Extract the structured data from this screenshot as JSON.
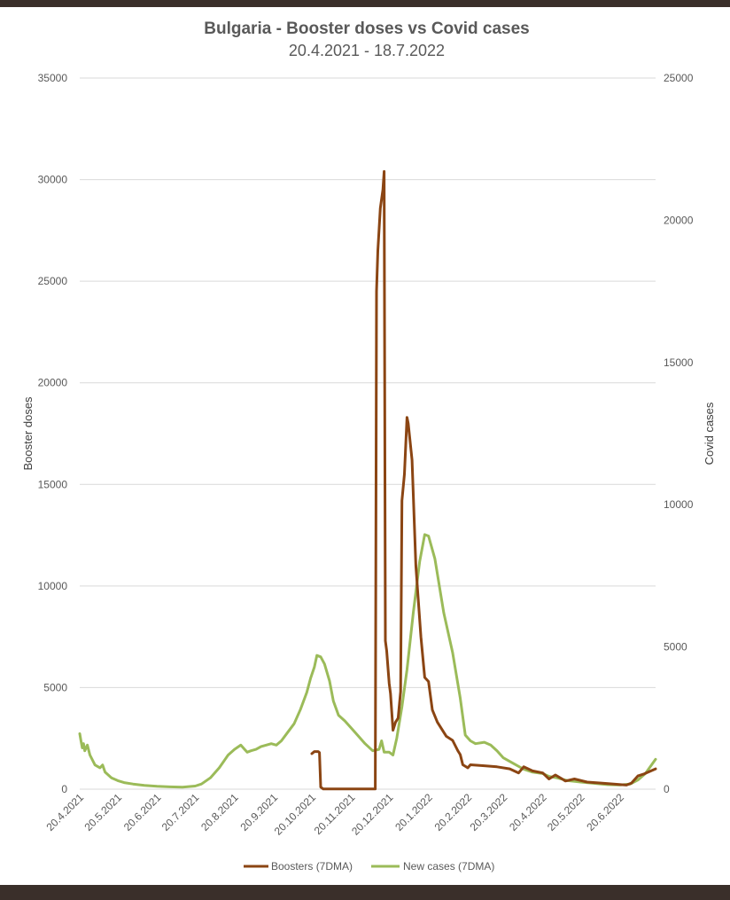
{
  "chart_data": {
    "type": "line",
    "title": "Bulgaria - Booster doses vs Covid cases",
    "subtitle": "20.4.2021 - 18.7.2022",
    "ylabel_left": "Booster doses",
    "ylabel_right": "Covid cases",
    "ylim_left": [
      0,
      35000
    ],
    "ylim_right": [
      0,
      25000
    ],
    "yticks_left": [
      "0",
      "5000",
      "10000",
      "15000",
      "20000",
      "25000",
      "30000",
      "35000"
    ],
    "yticks_right": [
      "0",
      "5000",
      "10000",
      "15000",
      "20000",
      "25000"
    ],
    "x_start": "20.4.2021",
    "x_end": "18.7.2022",
    "xticks": [
      "20.4.2021",
      "20.5.2021",
      "20.6.2021",
      "20.7.2021",
      "20.8.2021",
      "20.9.2021",
      "20.10.2021",
      "20.11.2021",
      "20.12.2021",
      "20.1.2022",
      "20.2.2022",
      "20.3.2022",
      "20.4.2022",
      "20.5.2022",
      "20.6.2022"
    ],
    "grid": "horizontal",
    "legend_position": "bottom",
    "series": [
      {
        "name": "Boosters (7DMA)",
        "axis": "left",
        "color": "#8b4513",
        "points": [
          [
            "20.10.2021",
            1750
          ],
          [
            "22.10.2021",
            1850
          ],
          [
            "25.10.2021",
            1850
          ],
          [
            "26.10.2021",
            1800
          ],
          [
            "27.10.2021",
            100
          ],
          [
            "29.10.2021",
            10
          ],
          [
            "10.11.2021",
            10
          ],
          [
            "20.11.2021",
            10
          ],
          [
            "30.11.2021",
            10
          ],
          [
            "9.12.2021",
            10
          ],
          [
            "10.12.2021",
            24500
          ],
          [
            "11.12.2021",
            26500
          ],
          [
            "13.12.2021",
            28600
          ],
          [
            "15.12.2021",
            29500
          ],
          [
            "16.12.2021",
            30400
          ],
          [
            "17.12.2021",
            7300
          ],
          [
            "18.12.2021",
            6800
          ],
          [
            "20.12.2021",
            5200
          ],
          [
            "21.12.2021",
            4700
          ],
          [
            "23.12.2021",
            2900
          ],
          [
            "25.12.2021",
            3300
          ],
          [
            "27.12.2021",
            3500
          ],
          [
            "29.12.2021",
            4800
          ],
          [
            "30.12.2021",
            14200
          ],
          [
            "1.1.2022",
            15500
          ],
          [
            "3.1.2022",
            18300
          ],
          [
            "4.1.2022",
            18000
          ],
          [
            "7.1.2022",
            16200
          ],
          [
            "10.1.2022",
            11000
          ],
          [
            "14.1.2022",
            7500
          ],
          [
            "17.1.2022",
            5500
          ],
          [
            "20.1.2022",
            5300
          ],
          [
            "23.1.2022",
            3900
          ],
          [
            "27.1.2022",
            3300
          ],
          [
            "3.2.2022",
            2600
          ],
          [
            "8.2.2022",
            2400
          ],
          [
            "12.2.2022",
            1900
          ],
          [
            "14.2.2022",
            1700
          ],
          [
            "16.2.2022",
            1200
          ],
          [
            "20.2.2022",
            1050
          ],
          [
            "22.2.2022",
            1200
          ],
          [
            "5.3.2022",
            1150
          ],
          [
            "15.3.2022",
            1100
          ],
          [
            "25.3.2022",
            1000
          ],
          [
            "1.4.2022",
            800
          ],
          [
            "5.4.2022",
            1100
          ],
          [
            "12.4.2022",
            900
          ],
          [
            "20.4.2022",
            800
          ],
          [
            "25.4.2022",
            500
          ],
          [
            "30.4.2022",
            700
          ],
          [
            "8.5.2022",
            400
          ],
          [
            "15.5.2022",
            500
          ],
          [
            "25.5.2022",
            350
          ],
          [
            "5.6.2022",
            300
          ],
          [
            "15.6.2022",
            250
          ],
          [
            "25.6.2022",
            200
          ],
          [
            "29.6.2022",
            300
          ],
          [
            "4.7.2022",
            650
          ],
          [
            "9.7.2022",
            750
          ],
          [
            "18.7.2022",
            1000
          ]
        ]
      },
      {
        "name": "New cases (7DMA)",
        "axis": "right",
        "color": "#9bbb59",
        "points": [
          [
            "20.4.2021",
            1950
          ],
          [
            "21.4.2021",
            1700
          ],
          [
            "22.4.2021",
            1450
          ],
          [
            "23.4.2021",
            1600
          ],
          [
            "24.4.2021",
            1350
          ],
          [
            "26.4.2021",
            1550
          ],
          [
            "28.4.2021",
            1200
          ],
          [
            "2.5.2021",
            850
          ],
          [
            "4.5.2021",
            800
          ],
          [
            "6.5.2021",
            750
          ],
          [
            "8.5.2021",
            850
          ],
          [
            "10.5.2021",
            600
          ],
          [
            "15.5.2021",
            400
          ],
          [
            "20.5.2021",
            300
          ],
          [
            "25.5.2021",
            230
          ],
          [
            "1.6.2021",
            180
          ],
          [
            "10.6.2021",
            130
          ],
          [
            "20.6.2021",
            100
          ],
          [
            "30.6.2021",
            80
          ],
          [
            "10.7.2021",
            70
          ],
          [
            "15.7.2021",
            90
          ],
          [
            "20.7.2021",
            110
          ],
          [
            "25.7.2021",
            180
          ],
          [
            "1.8.2021",
            400
          ],
          [
            "8.8.2021",
            750
          ],
          [
            "15.8.2021",
            1200
          ],
          [
            "20.8.2021",
            1400
          ],
          [
            "25.8.2021",
            1550
          ],
          [
            "28.8.2021",
            1400
          ],
          [
            "30.8.2021",
            1300
          ],
          [
            "2.9.2021",
            1350
          ],
          [
            "6.9.2021",
            1400
          ],
          [
            "10.9.2021",
            1500
          ],
          [
            "14.9.2021",
            1550
          ],
          [
            "18.9.2021",
            1600
          ],
          [
            "22.9.2021",
            1550
          ],
          [
            "26.9.2021",
            1700
          ],
          [
            "1.10.2021",
            2000
          ],
          [
            "6.10.2021",
            2300
          ],
          [
            "11.10.2021",
            2800
          ],
          [
            "16.10.2021",
            3400
          ],
          [
            "19.10.2021",
            3900
          ],
          [
            "22.10.2021",
            4300
          ],
          [
            "24.10.2021",
            4700
          ],
          [
            "27.10.2021",
            4650
          ],
          [
            "30.10.2021",
            4400
          ],
          [
            "3.11.2021",
            3800
          ],
          [
            "6.11.2021",
            3100
          ],
          [
            "10.11.2021",
            2600
          ],
          [
            "15.11.2021",
            2400
          ],
          [
            "20.11.2021",
            2150
          ],
          [
            "25.11.2021",
            1900
          ],
          [
            "1.12.2021",
            1600
          ],
          [
            "7.12.2021",
            1350
          ],
          [
            "12.12.2021",
            1400
          ],
          [
            "14.12.2021",
            1700
          ],
          [
            "16.12.2021",
            1300
          ],
          [
            "20.12.2021",
            1300
          ],
          [
            "23.12.2021",
            1200
          ],
          [
            "26.12.2021",
            1800
          ],
          [
            "30.12.2021",
            2900
          ],
          [
            "3.1.2022",
            4200
          ],
          [
            "8.1.2022",
            6200
          ],
          [
            "13.1.2022",
            8000
          ],
          [
            "17.1.2022",
            8950
          ],
          [
            "20.1.2022",
            8900
          ],
          [
            "25.1.2022",
            8100
          ],
          [
            "1.2.2022",
            6200
          ],
          [
            "8.2.2022",
            4800
          ],
          [
            "14.2.2022",
            3200
          ],
          [
            "18.2.2022",
            1900
          ],
          [
            "22.2.2022",
            1700
          ],
          [
            "26.2.2022",
            1600
          ],
          [
            "5.3.2022",
            1650
          ],
          [
            "10.3.2022",
            1550
          ],
          [
            "15.3.2022",
            1350
          ],
          [
            "20.3.2022",
            1100
          ],
          [
            "28.3.2022",
            900
          ],
          [
            "5.4.2022",
            700
          ],
          [
            "12.4.2022",
            600
          ],
          [
            "20.4.2022",
            550
          ],
          [
            "25.4.2022",
            450
          ],
          [
            "1.5.2022",
            400
          ],
          [
            "10.5.2022",
            300
          ],
          [
            "20.5.2022",
            250
          ],
          [
            "1.6.2022",
            200
          ],
          [
            "10.6.2022",
            160
          ],
          [
            "20.6.2022",
            150
          ],
          [
            "28.6.2022",
            180
          ],
          [
            "4.7.2022",
            320
          ],
          [
            "10.7.2022",
            550
          ],
          [
            "18.7.2022",
            1050
          ]
        ]
      }
    ]
  }
}
